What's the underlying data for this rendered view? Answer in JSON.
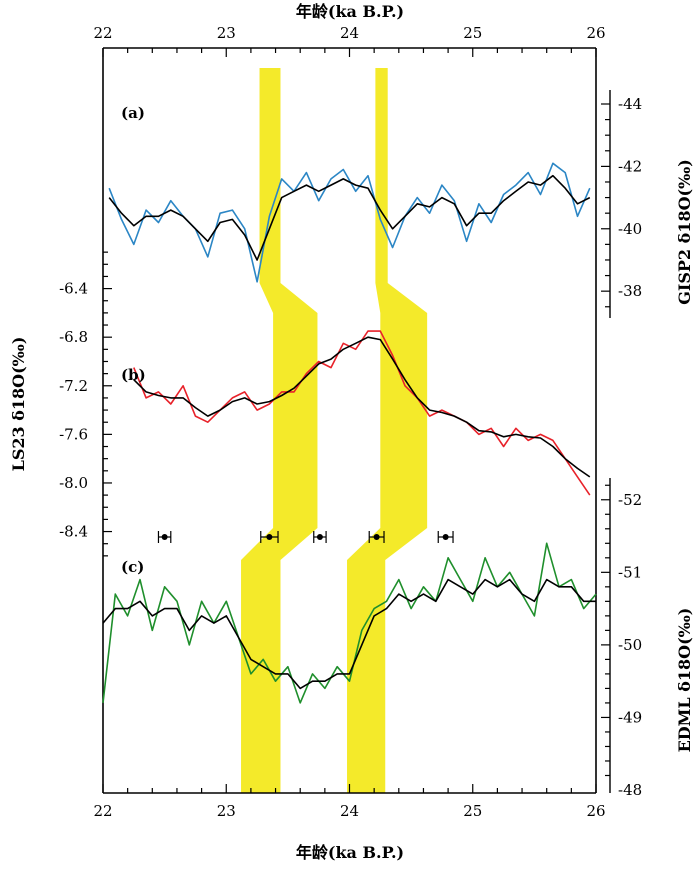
{
  "chart_data": {
    "type": "line",
    "x_axis": {
      "title": "年龄(ka B.P.)",
      "range": [
        22,
        26
      ],
      "ticks": [
        "22",
        "23",
        "24",
        "25",
        "26"
      ]
    },
    "panels": [
      {
        "label": "(a)",
        "series_color": "#2b86c5",
        "smooth_color": "#000000",
        "y_axis": {
          "side": "right",
          "title": "GISP2 δ18O(‰)",
          "range": [
            -44,
            -37.3
          ],
          "inverted": true,
          "ticks": [
            "-38",
            "-40",
            "-42",
            "-44"
          ]
        },
        "x": [
          22.05,
          22.15,
          22.25,
          22.35,
          22.45,
          22.55,
          22.65,
          22.75,
          22.85,
          22.95,
          23.05,
          23.15,
          23.25,
          23.35,
          23.45,
          23.55,
          23.65,
          23.75,
          23.85,
          23.95,
          24.05,
          24.15,
          24.25,
          24.35,
          24.45,
          24.55,
          24.65,
          24.75,
          24.85,
          24.95,
          25.05,
          25.15,
          25.25,
          25.35,
          25.45,
          25.55,
          25.65,
          25.75,
          25.85,
          25.95
        ],
        "y": [
          -41.3,
          -40.3,
          -39.5,
          -40.6,
          -40.2,
          -40.9,
          -40.4,
          -40.0,
          -39.1,
          -40.5,
          -40.6,
          -40.0,
          -38.3,
          -40.4,
          -41.6,
          -41.2,
          -41.8,
          -40.9,
          -41.6,
          -41.9,
          -41.2,
          -41.7,
          -40.3,
          -39.4,
          -40.4,
          -41.0,
          -40.5,
          -41.4,
          -40.9,
          -39.6,
          -40.8,
          -40.2,
          -41.1,
          -41.4,
          -41.8,
          -41.1,
          -42.1,
          -41.8,
          -40.4,
          -41.3
        ],
        "smooth": [
          -41.0,
          -40.5,
          -40.1,
          -40.4,
          -40.4,
          -40.6,
          -40.4,
          -40.0,
          -39.6,
          -40.2,
          -40.3,
          -39.8,
          -39.0,
          -40.0,
          -41.0,
          -41.2,
          -41.4,
          -41.2,
          -41.4,
          -41.6,
          -41.4,
          -41.3,
          -40.6,
          -40.0,
          -40.4,
          -40.8,
          -40.7,
          -41.0,
          -40.8,
          -40.1,
          -40.5,
          -40.5,
          -40.9,
          -41.2,
          -41.5,
          -41.4,
          -41.7,
          -41.3,
          -40.8,
          -41.0
        ]
      },
      {
        "label": "(b)",
        "series_color": "#e8222a",
        "smooth_color": "#000000",
        "y_axis": {
          "side": "left",
          "title": "LS23 δ18O(‰)",
          "range": [
            -6.0,
            -8.7
          ],
          "inverted": true,
          "ticks": [
            "-8.4",
            "-8.0",
            "-7.6",
            "-7.2",
            "-6.8",
            "-6.4"
          ]
        },
        "x": [
          22.25,
          22.35,
          22.45,
          22.55,
          22.65,
          22.75,
          22.85,
          22.95,
          23.05,
          23.15,
          23.25,
          23.35,
          23.45,
          23.55,
          23.65,
          23.75,
          23.85,
          23.95,
          24.05,
          24.15,
          24.25,
          24.35,
          24.45,
          24.55,
          24.65,
          24.75,
          24.85,
          24.95,
          25.05,
          25.15,
          25.25,
          25.35,
          25.45,
          25.55,
          25.65,
          25.75,
          25.85,
          25.95
        ],
        "y": [
          -7.05,
          -7.3,
          -7.25,
          -7.35,
          -7.2,
          -7.45,
          -7.5,
          -7.4,
          -7.3,
          -7.25,
          -7.4,
          -7.35,
          -7.25,
          -7.25,
          -7.1,
          -7.0,
          -7.05,
          -6.85,
          -6.9,
          -6.75,
          -6.75,
          -6.95,
          -7.2,
          -7.3,
          -7.45,
          -7.4,
          -7.45,
          -7.5,
          -7.6,
          -7.55,
          -7.7,
          -7.55,
          -7.65,
          -7.6,
          -7.65,
          -7.8,
          -7.95,
          -8.1
        ],
        "smooth": [
          -7.15,
          -7.25,
          -7.28,
          -7.3,
          -7.3,
          -7.38,
          -7.45,
          -7.4,
          -7.33,
          -7.3,
          -7.35,
          -7.33,
          -7.28,
          -7.22,
          -7.12,
          -7.02,
          -6.98,
          -6.9,
          -6.85,
          -6.8,
          -6.82,
          -6.98,
          -7.15,
          -7.3,
          -7.4,
          -7.42,
          -7.45,
          -7.5,
          -7.57,
          -7.58,
          -7.62,
          -7.6,
          -7.62,
          -7.63,
          -7.7,
          -7.8,
          -7.88,
          -7.95
        ]
      },
      {
        "label": "(c)",
        "series_color": "#1f8f2c",
        "smooth_color": "#000000",
        "y_axis": {
          "side": "right",
          "title": "EDML δ18O(‰)",
          "range": [
            -52.3,
            -48
          ],
          "inverted": false,
          "ticks": [
            "-52",
            "-51",
            "-50",
            "-49",
            "-48"
          ]
        },
        "x": [
          22.0,
          22.1,
          22.2,
          22.3,
          22.4,
          22.5,
          22.6,
          22.7,
          22.8,
          22.9,
          23.0,
          23.1,
          23.2,
          23.3,
          23.4,
          23.5,
          23.6,
          23.7,
          23.8,
          23.9,
          24.0,
          24.1,
          24.2,
          24.3,
          24.4,
          24.5,
          24.6,
          24.7,
          24.8,
          24.9,
          25.0,
          25.1,
          25.2,
          25.3,
          25.4,
          25.5,
          25.6,
          25.7,
          25.8,
          25.9,
          26.0
        ],
        "y": [
          -49.2,
          -50.7,
          -50.4,
          -50.9,
          -50.2,
          -50.8,
          -50.6,
          -50.0,
          -50.6,
          -50.3,
          -50.6,
          -50.1,
          -49.6,
          -49.8,
          -49.5,
          -49.7,
          -49.2,
          -49.6,
          -49.4,
          -49.7,
          -49.5,
          -50.2,
          -50.5,
          -50.6,
          -50.9,
          -50.5,
          -50.8,
          -50.6,
          -51.2,
          -50.9,
          -50.6,
          -51.2,
          -50.8,
          -51.0,
          -50.7,
          -50.4,
          -51.4,
          -50.8,
          -50.9,
          -50.5,
          -50.7
        ],
        "smooth": [
          -50.3,
          -50.5,
          -50.5,
          -50.6,
          -50.4,
          -50.5,
          -50.5,
          -50.2,
          -50.4,
          -50.3,
          -50.4,
          -50.1,
          -49.8,
          -49.7,
          -49.6,
          -49.6,
          -49.4,
          -49.5,
          -49.5,
          -49.6,
          -49.6,
          -50.0,
          -50.4,
          -50.5,
          -50.7,
          -50.6,
          -50.7,
          -50.6,
          -50.9,
          -50.8,
          -50.7,
          -50.9,
          -50.8,
          -50.9,
          -50.7,
          -50.6,
          -50.9,
          -50.8,
          -50.8,
          -50.6,
          -50.6
        ]
      }
    ],
    "tie_points": [
      {
        "x": 22.5,
        "err": 0.05
      },
      {
        "x": 23.35,
        "err": 0.07
      },
      {
        "x": 23.76,
        "err": 0.05
      },
      {
        "x": 24.22,
        "err": 0.06
      },
      {
        "x": 24.78,
        "err": 0.06
      }
    ],
    "highlight_bands": {
      "color": "#f4ea2a",
      "bands": [
        {
          "a": [
            23.27,
            23.44
          ],
          "b": [
            23.38,
            23.74
          ],
          "c": [
            23.12,
            23.44
          ]
        },
        {
          "a": [
            24.21,
            24.31
          ],
          "b": [
            24.25,
            24.63
          ],
          "c": [
            23.98,
            24.29
          ]
        }
      ]
    }
  }
}
